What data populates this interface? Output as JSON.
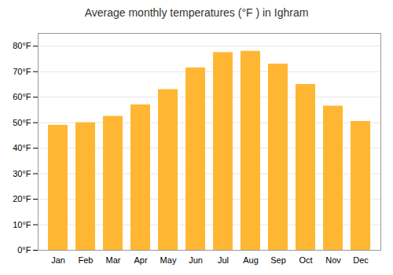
{
  "chart_data": {
    "type": "bar",
    "title": "Average monthly temperatures (°F ) in Ighram",
    "categories": [
      "Jan",
      "Feb",
      "Mar",
      "Apr",
      "May",
      "Jun",
      "Jul",
      "Aug",
      "Sep",
      "Oct",
      "Nov",
      "Dec"
    ],
    "values": [
      49,
      50,
      52.5,
      57,
      63,
      71.5,
      77.5,
      78,
      73,
      65,
      56.5,
      50.5
    ],
    "color": "#FFB733",
    "ylim": [
      0,
      85
    ],
    "yticks": [
      {
        "value": 0,
        "label": "0°F"
      },
      {
        "value": 10,
        "label": "10°F"
      },
      {
        "value": 20,
        "label": "20°F"
      },
      {
        "value": 30,
        "label": "30°F"
      },
      {
        "value": 40,
        "label": "40°F"
      },
      {
        "value": 50,
        "label": "50°F"
      },
      {
        "value": 60,
        "label": "60°F"
      },
      {
        "value": 70,
        "label": "70°F"
      },
      {
        "value": 80,
        "label": "80°F"
      }
    ],
    "grid": true
  }
}
